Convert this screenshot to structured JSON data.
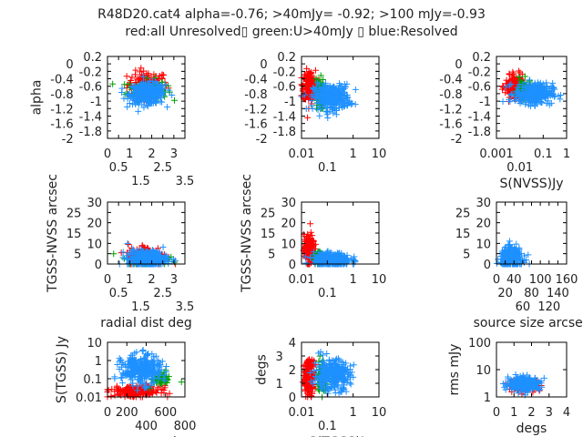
{
  "title_line1": "R48D20.cat4 alpha=-0.76; >40mJy= -0.92; >100 mJy=-0.93",
  "title_line2": "red:all Unresolved▯ green:U>40mJy ▯ blue:Resolved",
  "colors": {
    "red": "#ff0000",
    "green": "#00a000",
    "blue": "#1e90ff",
    "axis": "#000000"
  },
  "chart_data": [
    {
      "type": "scatter",
      "xlabel": "",
      "ylabel": "alpha",
      "xscale": "linear",
      "yscale": "linear",
      "xlim": [
        0,
        3.5
      ],
      "ylim": [
        -2,
        0.2
      ],
      "xticks": [
        "0",
        "0.5",
        "1",
        "1.5",
        "2",
        "2.5",
        "3",
        "3.5"
      ],
      "xtickvals": [
        0,
        0.5,
        1,
        1.5,
        2,
        2.5,
        3,
        3.5
      ],
      "yticks": [
        "0.2",
        "0",
        "-0.2",
        "-0.4",
        "-0.6",
        "-0.8",
        "-1",
        "-1.2",
        "-1.4",
        "-1.6",
        "-1.8",
        "-2"
      ],
      "ytickvals": [
        0.2,
        0,
        -0.2,
        -0.4,
        -0.6,
        -0.8,
        -1,
        -1.2,
        -1.4,
        -1.6,
        -1.8,
        -2
      ],
      "clusters": {
        "red": [
          1.8,
          -0.55,
          0.9,
          0.25,
          120
        ],
        "green": [
          1.8,
          -0.7,
          0.9,
          0.2,
          100
        ],
        "blue": [
          1.8,
          -0.8,
          0.8,
          0.2,
          300
        ]
      }
    },
    {
      "type": "scatter",
      "xlabel": "",
      "ylabel": "",
      "xscale": "log",
      "yscale": "linear",
      "xlim": [
        0.01,
        10
      ],
      "ylim": [
        -2,
        0.2
      ],
      "xticks": [
        "0.01",
        "0.1",
        "1",
        "10"
      ],
      "xtickvals": [
        0.01,
        0.1,
        1,
        10
      ],
      "yticks": [
        "0.2",
        "0",
        "-0.2",
        "-0.4",
        "-0.6",
        "-0.8",
        "-1",
        "-1.2",
        "-1.4",
        "-1.6",
        "-1.8",
        "-2"
      ],
      "ytickvals": [
        0.2,
        0,
        -0.2,
        -0.4,
        -0.6,
        -0.8,
        -1,
        -1.2,
        -1.4,
        -1.6,
        -1.8,
        -2
      ],
      "clusters": {
        "red": [
          0.02,
          -0.6,
          0.12,
          0.3,
          200
        ],
        "green": [
          0.05,
          -0.8,
          0.08,
          0.3,
          80
        ],
        "blue": [
          0.15,
          -0.9,
          0.35,
          0.25,
          300
        ]
      }
    },
    {
      "type": "scatter",
      "xlabel": "S(NVSS)Jy",
      "ylabel": "",
      "xscale": "log",
      "yscale": "linear",
      "xlim": [
        0.001,
        1
      ],
      "ylim": [
        -2,
        0.2
      ],
      "xticks": [
        "0.001",
        "0.01",
        "0.1",
        "1"
      ],
      "xtickvals": [
        0.001,
        0.01,
        0.1,
        1
      ],
      "yticks": [
        "0.2",
        "0",
        "-0.2",
        "-0.4",
        "-0.6",
        "-0.8",
        "-1",
        "-1.2",
        "-1.4",
        "-1.6",
        "-1.8",
        "-2"
      ],
      "ytickvals": [
        0.2,
        0,
        -0.2,
        -0.4,
        -0.6,
        -0.8,
        -1,
        -1.2,
        -1.4,
        -1.6,
        -1.8,
        -2
      ],
      "clusters": {
        "red": [
          0.006,
          -0.6,
          0.2,
          0.2,
          200
        ],
        "green": [
          0.015,
          -0.7,
          0.15,
          0.2,
          80
        ],
        "blue": [
          0.04,
          -0.8,
          0.4,
          0.2,
          300
        ]
      }
    },
    {
      "type": "scatter",
      "xlabel": "radial dist deg",
      "ylabel": "TGSS-NVSS arcsec",
      "xscale": "linear",
      "yscale": "linear",
      "xlim": [
        0,
        3.5
      ],
      "ylim": [
        0,
        30
      ],
      "xticks": [
        "0",
        "0.5",
        "1",
        "1.5",
        "2",
        "2.5",
        "3",
        "3.5"
      ],
      "xtickvals": [
        0,
        0.5,
        1,
        1.5,
        2,
        2.5,
        3,
        3.5
      ],
      "yticks": [
        "0",
        "5",
        "10",
        "15",
        "20",
        "25",
        "30"
      ],
      "ytickvals": [
        0,
        5,
        10,
        15,
        20,
        25,
        30
      ],
      "clusters": {
        "red": [
          1.8,
          4,
          0.9,
          4,
          120
        ],
        "green": [
          1.8,
          2,
          0.9,
          2,
          80
        ],
        "blue": [
          1.8,
          2.5,
          0.9,
          3,
          300
        ]
      }
    },
    {
      "type": "scatter",
      "xlabel": "",
      "ylabel": "TGSS-NVSS arcsec",
      "xscale": "log",
      "yscale": "linear",
      "xlim": [
        0.01,
        10
      ],
      "ylim": [
        0,
        30
      ],
      "xticks": [
        "0.01",
        "0.1",
        "1",
        "10"
      ],
      "xtickvals": [
        0.01,
        0.1,
        1,
        10
      ],
      "yticks": [
        "0",
        "5",
        "10",
        "15",
        "20",
        "25",
        "30"
      ],
      "ytickvals": [
        0,
        5,
        10,
        15,
        20,
        25,
        30
      ],
      "clusters": {
        "red": [
          0.02,
          7,
          0.1,
          5,
          200
        ],
        "green": [
          0.045,
          3,
          0.08,
          2,
          80
        ],
        "blue": [
          0.15,
          2,
          0.35,
          2.5,
          300
        ]
      }
    },
    {
      "type": "scatter",
      "xlabel": "source size arcsec",
      "ylabel": "",
      "xscale": "linear",
      "yscale": "linear",
      "xlim": [
        0,
        160
      ],
      "ylim": [
        0,
        30
      ],
      "xticks": [
        "0",
        "20",
        "40",
        "60",
        "80",
        "100",
        "120",
        "140",
        "160"
      ],
      "xtickvals": [
        0,
        20,
        40,
        60,
        80,
        100,
        120,
        140,
        160
      ],
      "yticks": [
        "0",
        "5",
        "10",
        "15",
        "20",
        "25",
        "30"
      ],
      "ytickvals": [
        0,
        5,
        10,
        15,
        20,
        25,
        30
      ],
      "clusters": {
        "blue": [
          35,
          3,
          25,
          3.5,
          300
        ]
      }
    },
    {
      "type": "scatter",
      "xlabel": "source number",
      "ylabel": "S(TGSS) Jy",
      "xscale": "linear",
      "yscale": "log",
      "xlim": [
        0,
        800
      ],
      "ylim": [
        0.01,
        10
      ],
      "xticks": [
        "0",
        "200",
        "400",
        "600",
        "800"
      ],
      "xtickvals": [
        0,
        200,
        400,
        600,
        800
      ],
      "yticks": [
        "10",
        "1",
        "0.1",
        "0.01"
      ],
      "ytickvals": [
        10,
        1,
        0.1,
        0.01
      ],
      "clusters": {
        "red": [
          300,
          0.02,
          250,
          0.15,
          200
        ],
        "green": [
          550,
          0.1,
          100,
          0.2,
          50
        ],
        "blue": [
          350,
          0.3,
          200,
          0.4,
          300
        ]
      }
    },
    {
      "type": "scatter",
      "xlabel": "S(TGSS)Jy",
      "ylabel": "degs",
      "xscale": "log",
      "yscale": "linear",
      "xlim": [
        0.01,
        10
      ],
      "ylim": [
        0,
        4
      ],
      "xticks": [
        "0.01",
        "0.1",
        "1",
        "10"
      ],
      "xtickvals": [
        0.01,
        0.1,
        1,
        10
      ],
      "yticks": [
        "4",
        "3",
        "2",
        "1",
        "0"
      ],
      "ytickvals": [
        4,
        3,
        2,
        1,
        0
      ],
      "clusters": {
        "red": [
          0.02,
          1.5,
          0.1,
          0.9,
          200
        ],
        "green": [
          0.06,
          1.5,
          0.08,
          0.9,
          80
        ],
        "blue": [
          0.15,
          1.6,
          0.35,
          0.8,
          300
        ]
      }
    },
    {
      "type": "scatter",
      "xlabel": "degs",
      "ylabel": "rms mJy",
      "xscale": "linear",
      "yscale": "log",
      "xlim": [
        0,
        4
      ],
      "ylim": [
        1,
        100
      ],
      "xticks": [
        "0",
        "1",
        "2",
        "3",
        "4"
      ],
      "xtickvals": [
        0,
        1,
        2,
        3,
        4
      ],
      "yticks": [
        "100",
        "10",
        "1"
      ],
      "ytickvals": [
        100,
        10,
        1
      ],
      "clusters": {
        "red": [
          1.6,
          2.7,
          0.9,
          0.1,
          100
        ],
        "blue": [
          1.6,
          3,
          0.9,
          0.12,
          300
        ]
      }
    }
  ]
}
